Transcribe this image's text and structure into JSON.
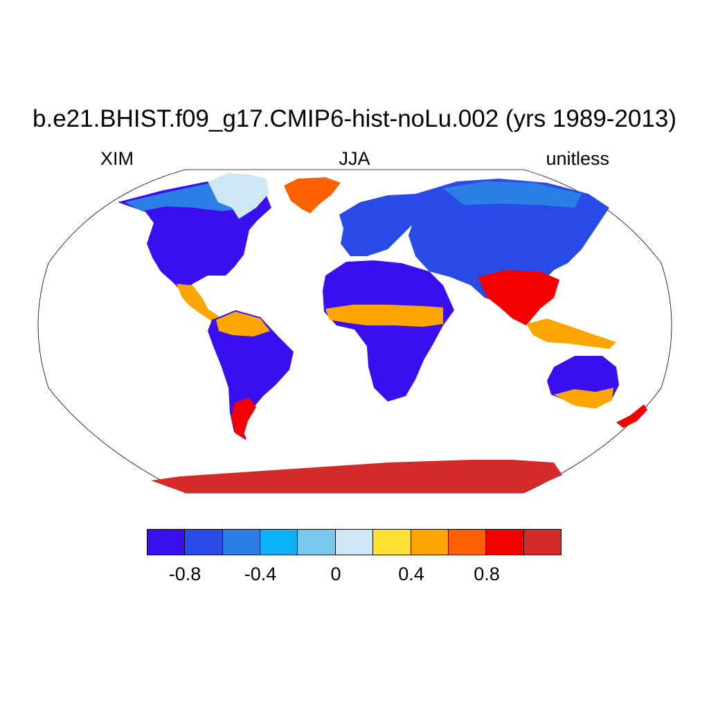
{
  "title": "b.e21.BHIST.f09_g17.CMIP6-hist-noLu.002 (yrs 1989-2013)",
  "subtitle_left": "XIM",
  "subtitle_center": "JJA",
  "subtitle_right": "unitless",
  "colorbar": {
    "colors": [
      "#3a0fef",
      "#2a4ae8",
      "#2c7fe6",
      "#0bb0f6",
      "#7ac8ee",
      "#cde7f6",
      "#fde135",
      "#fda500",
      "#fd6000",
      "#f50000",
      "#d42a2a"
    ],
    "tick_labels": [
      "-0.8",
      "-0.4",
      "0",
      "0.4",
      "0.8"
    ]
  },
  "map": {
    "projection": "Robinson",
    "land_fill_default": "#3a0fef",
    "regions": [
      {
        "name": "North America",
        "value": -0.9
      },
      {
        "name": "Canada north",
        "value": -0.6
      },
      {
        "name": "Greenland",
        "value": 0.7
      },
      {
        "name": "Central America",
        "value": 0.3
      },
      {
        "name": "South America",
        "value": -0.9
      },
      {
        "name": "Amazon north",
        "value": 0.6
      },
      {
        "name": "Patagonia",
        "value": 1.0
      },
      {
        "name": "Europe",
        "value": -0.8
      },
      {
        "name": "Sahara",
        "value": -0.9
      },
      {
        "name": "Sahel",
        "value": 0.5
      },
      {
        "name": "Southern Africa",
        "value": -0.9
      },
      {
        "name": "Asia",
        "value": -0.8
      },
      {
        "name": "Siberia",
        "value": -0.5
      },
      {
        "name": "South Asia",
        "value": 0.9
      },
      {
        "name": "Southeast Asia",
        "value": 0.5
      },
      {
        "name": "Australia",
        "value": -0.9
      },
      {
        "name": "New Zealand",
        "value": 1.0
      },
      {
        "name": "Antarctica",
        "value": 1.1
      }
    ]
  }
}
